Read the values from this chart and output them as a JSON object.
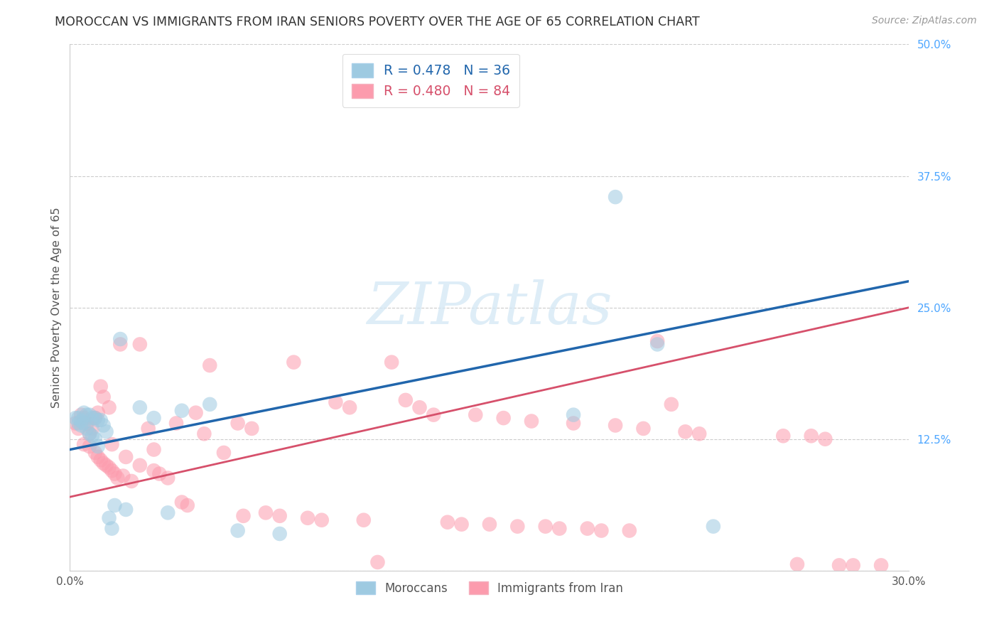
{
  "title": "MOROCCAN VS IMMIGRANTS FROM IRAN SENIORS POVERTY OVER THE AGE OF 65 CORRELATION CHART",
  "source": "Source: ZipAtlas.com",
  "ylabel": "Seniors Poverty Over the Age of 65",
  "xlim": [
    0.0,
    0.3
  ],
  "ylim": [
    0.0,
    0.5
  ],
  "xtick_positions": [
    0.0,
    0.05,
    0.1,
    0.15,
    0.2,
    0.25,
    0.3
  ],
  "xtick_labels": [
    "0.0%",
    "",
    "",
    "",
    "",
    "",
    "30.0%"
  ],
  "yticks_right": [
    0.125,
    0.25,
    0.375,
    0.5
  ],
  "ytick_labels_right": [
    "12.5%",
    "25.0%",
    "37.5%",
    "50.0%"
  ],
  "grid_lines": [
    0.0,
    0.125,
    0.25,
    0.375,
    0.5
  ],
  "legend1_label": "R = 0.478   N = 36",
  "legend2_label": "R = 0.480   N = 84",
  "blue_scatter_color": "#9ecae1",
  "pink_scatter_color": "#fc9bad",
  "blue_line_color": "#2166ac",
  "pink_line_color": "#d6506b",
  "legend_label1": "Moroccans",
  "legend_label2": "Immigrants from Iran",
  "blue_line_y0": 0.115,
  "blue_line_y1": 0.275,
  "pink_line_y0": 0.07,
  "pink_line_y1": 0.25,
  "blue_x": [
    0.002,
    0.003,
    0.003,
    0.004,
    0.004,
    0.005,
    0.005,
    0.006,
    0.006,
    0.007,
    0.007,
    0.008,
    0.008,
    0.009,
    0.009,
    0.01,
    0.01,
    0.011,
    0.012,
    0.013,
    0.014,
    0.015,
    0.016,
    0.018,
    0.02,
    0.025,
    0.03,
    0.035,
    0.04,
    0.05,
    0.06,
    0.075,
    0.18,
    0.195,
    0.21,
    0.23
  ],
  "blue_y": [
    0.145,
    0.145,
    0.14,
    0.142,
    0.138,
    0.15,
    0.14,
    0.148,
    0.135,
    0.148,
    0.13,
    0.145,
    0.128,
    0.145,
    0.125,
    0.143,
    0.118,
    0.143,
    0.138,
    0.132,
    0.05,
    0.04,
    0.062,
    0.22,
    0.058,
    0.155,
    0.145,
    0.055,
    0.152,
    0.158,
    0.038,
    0.035,
    0.148,
    0.355,
    0.215,
    0.042
  ],
  "pink_x": [
    0.002,
    0.003,
    0.004,
    0.005,
    0.005,
    0.006,
    0.007,
    0.007,
    0.008,
    0.009,
    0.009,
    0.01,
    0.01,
    0.011,
    0.011,
    0.012,
    0.012,
    0.013,
    0.014,
    0.014,
    0.015,
    0.015,
    0.016,
    0.017,
    0.018,
    0.019,
    0.02,
    0.022,
    0.025,
    0.025,
    0.028,
    0.03,
    0.03,
    0.032,
    0.035,
    0.038,
    0.04,
    0.042,
    0.045,
    0.048,
    0.05,
    0.055,
    0.06,
    0.062,
    0.065,
    0.07,
    0.075,
    0.08,
    0.085,
    0.09,
    0.095,
    0.1,
    0.105,
    0.11,
    0.115,
    0.12,
    0.125,
    0.13,
    0.135,
    0.14,
    0.145,
    0.15,
    0.155,
    0.16,
    0.165,
    0.17,
    0.175,
    0.18,
    0.185,
    0.19,
    0.195,
    0.2,
    0.205,
    0.21,
    0.215,
    0.22,
    0.225,
    0.255,
    0.26,
    0.265,
    0.27,
    0.275,
    0.28,
    0.29
  ],
  "pink_y": [
    0.14,
    0.135,
    0.148,
    0.12,
    0.145,
    0.14,
    0.118,
    0.13,
    0.135,
    0.112,
    0.145,
    0.108,
    0.15,
    0.105,
    0.175,
    0.102,
    0.165,
    0.1,
    0.098,
    0.155,
    0.095,
    0.12,
    0.092,
    0.088,
    0.215,
    0.09,
    0.108,
    0.085,
    0.215,
    0.1,
    0.135,
    0.095,
    0.115,
    0.092,
    0.088,
    0.14,
    0.065,
    0.062,
    0.15,
    0.13,
    0.195,
    0.112,
    0.14,
    0.052,
    0.135,
    0.055,
    0.052,
    0.198,
    0.05,
    0.048,
    0.16,
    0.155,
    0.048,
    0.008,
    0.198,
    0.162,
    0.155,
    0.148,
    0.046,
    0.044,
    0.148,
    0.044,
    0.145,
    0.042,
    0.142,
    0.042,
    0.04,
    0.14,
    0.04,
    0.038,
    0.138,
    0.038,
    0.135,
    0.218,
    0.158,
    0.132,
    0.13,
    0.128,
    0.006,
    0.128,
    0.125,
    0.005,
    0.005,
    0.005
  ],
  "watermark_text": "ZIPatlas",
  "bg_color": "#ffffff"
}
